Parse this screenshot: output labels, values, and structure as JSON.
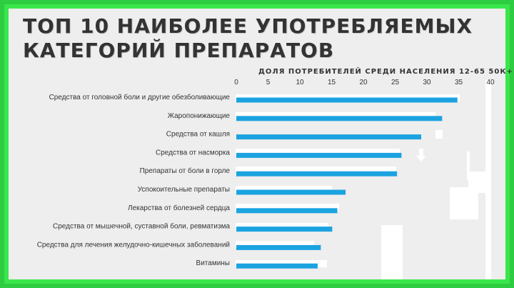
{
  "title": "ТОП 10 НАИБОЛЕЕ УПОТРЕБЛЯЕМЫХ\nКАТЕГОРИЙ ПРЕПАРАТОВ",
  "chart_data": {
    "type": "bar",
    "orientation": "horizontal",
    "xlabel": "ДОЛЯ ПОТРЕБИТЕЛЕЙ СРЕДИ НАСЕЛЕНИЯ 12-65 50К+",
    "xlim": [
      0,
      40
    ],
    "xticks": [
      "0",
      "5",
      "10",
      "15",
      "20",
      "25",
      "30",
      "35",
      "40"
    ],
    "categories": [
      "Средства от головной боли и другие обезболивающие",
      "Жаропонижающие",
      "Средства от кашля",
      "Средства от насморка",
      "Препараты от боли в горле",
      "Успокоительные препараты",
      "Лекарства от болезней сердца",
      "Средства от мышечной, суставной боли, ревматизма",
      "Средства для лечения желудочно-кишечных заболеваний",
      "Витамины"
    ],
    "values": [
      34.8,
      32.4,
      29.1,
      26.0,
      25.3,
      17.2,
      15.9,
      15.1,
      13.3,
      12.8
    ],
    "bar_color": "#1aa3e0",
    "grid": false
  }
}
